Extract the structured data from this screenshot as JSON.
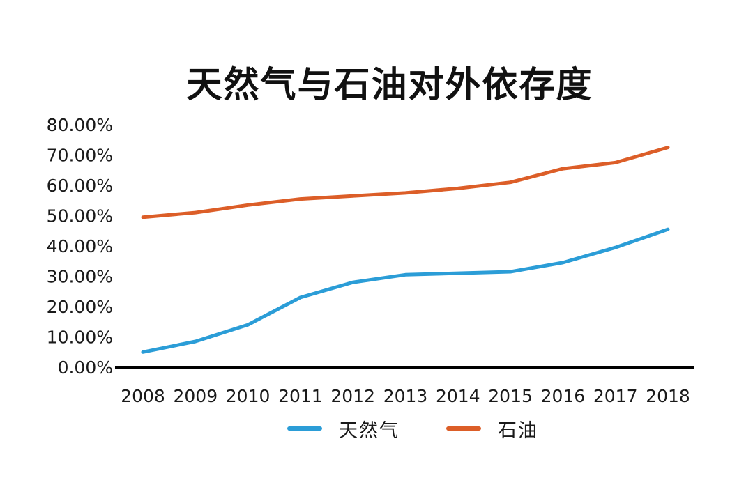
{
  "chart_data": {
    "type": "line",
    "title": "天然气与石油对外依存度",
    "categories": [
      "2008",
      "2009",
      "2010",
      "2011",
      "2012",
      "2013",
      "2014",
      "2015",
      "2016",
      "2017",
      "2018"
    ],
    "series": [
      {
        "name": "天然气",
        "color": "#2B9DD7",
        "values": [
          5.0,
          8.5,
          14.0,
          23.0,
          28.0,
          30.5,
          31.0,
          31.5,
          34.5,
          39.5,
          45.5
        ]
      },
      {
        "name": "石油",
        "color": "#DC5E28",
        "values": [
          49.5,
          51.0,
          53.5,
          55.5,
          56.5,
          57.5,
          59.0,
          61.0,
          65.5,
          67.5,
          72.5
        ]
      }
    ],
    "xlabel": "",
    "ylabel": "",
    "ylim": [
      0,
      80
    ],
    "ytick_step": 10,
    "yticklabels": [
      "0.00%",
      "10.00%",
      "20.00%",
      "30.00%",
      "40.00%",
      "50.00%",
      "60.00%",
      "70.00%",
      "80.00%"
    ],
    "grid": false,
    "legend_position": "bottom",
    "axis_color": "#000000",
    "text_color": "#1a1a1a"
  }
}
